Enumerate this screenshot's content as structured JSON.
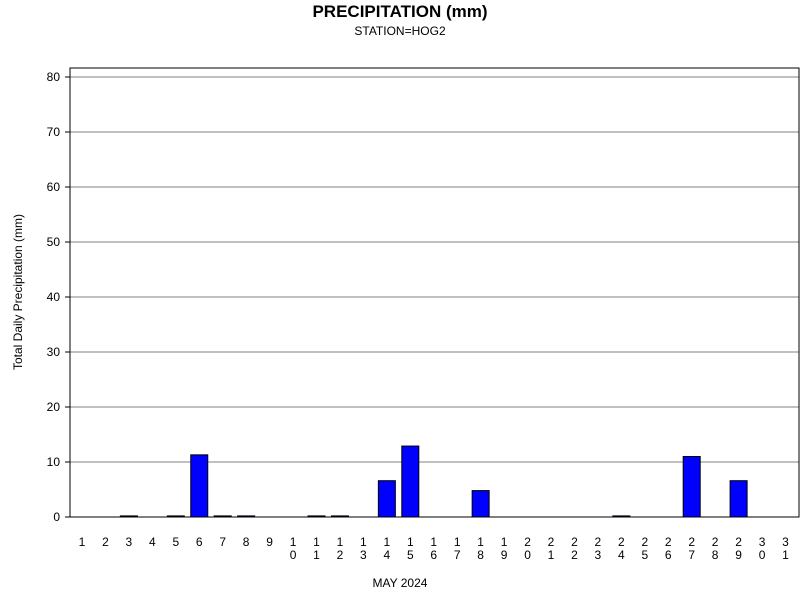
{
  "chart_data": {
    "type": "bar",
    "title": "PRECIPITATION (mm)",
    "subtitle": "STATION=HOG2",
    "xlabel": "MAY 2024",
    "ylabel": "Total Daily Precipitation (mm)",
    "ylim": [
      0,
      80
    ],
    "yticks": [
      "0",
      "10",
      "20",
      "30",
      "40",
      "50",
      "60",
      "70",
      "80"
    ],
    "categories": [
      "1",
      "2",
      "3",
      "4",
      "5",
      "6",
      "7",
      "8",
      "9",
      "10",
      "11",
      "12",
      "13",
      "14",
      "15",
      "16",
      "17",
      "18",
      "19",
      "20",
      "21",
      "22",
      "23",
      "24",
      "25",
      "26",
      "27",
      "28",
      "29",
      "30",
      "31"
    ],
    "values": [
      0,
      0,
      0.2,
      0,
      0.2,
      11.3,
      0.2,
      0.2,
      0,
      0,
      0.2,
      0.2,
      0,
      6.6,
      12.9,
      0,
      0,
      4.8,
      0,
      0,
      0,
      0,
      0,
      0.2,
      0,
      0,
      11.0,
      0,
      6.6,
      0,
      0
    ],
    "grid": true,
    "bar_color": "#0000ff"
  }
}
